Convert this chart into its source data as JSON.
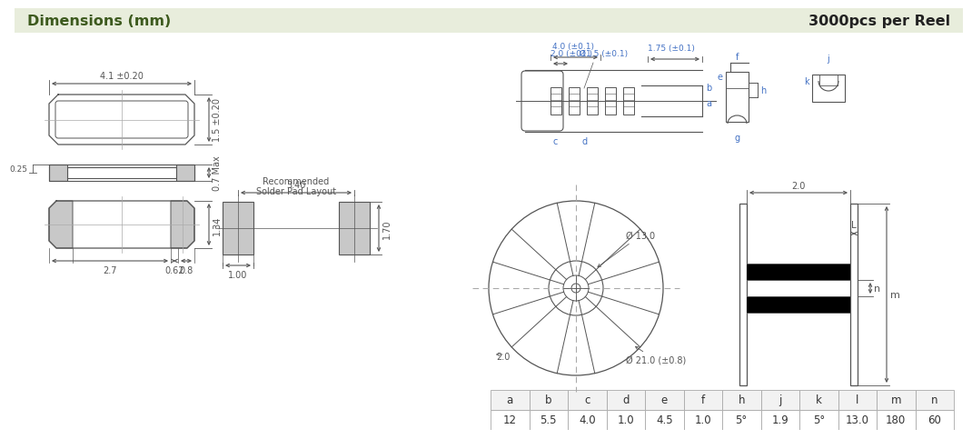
{
  "title_left": "Dimensions (mm)",
  "title_right": "3000pcs per Reel",
  "header_bg": "#e8eddc",
  "header_text_color_left": "#3d5a1e",
  "header_text_color_right": "#222222",
  "table_headers": [
    "a",
    "b",
    "c",
    "d",
    "e",
    "f",
    "h",
    "j",
    "k",
    "l",
    "m",
    "n"
  ],
  "table_values": [
    "12",
    "5.5",
    "4.0",
    "1.0",
    "4.5",
    "1.0",
    "5°",
    "1.9",
    "5°",
    "13.0",
    "180",
    "60"
  ],
  "dim_41": "4.1 ±0.20",
  "dim_15": "1.5 ±0.20",
  "dim_025": "0.25",
  "dim_07": "0.7 Max",
  "dim_134": "1.34",
  "dim_27": "2.7",
  "dim_062": "0.62",
  "dim_08": "0.8",
  "solder_label1": "Recommended",
  "solder_label2": "Solder Pad Layout",
  "dim_340": "3.40",
  "dim_170": "1.70",
  "dim_100": "1.00",
  "tape_label_40": "4.0 (±0.1)",
  "tape_label_20": "2.0 (±01.)",
  "tape_label_d15": "Ø1.5 (±0.1)",
  "tape_label_175": "1.75 (±0.1)",
  "reel_d130": "Ø 13.0",
  "reel_d210": "Ø 21.0 (±0.8)",
  "reel_dim_L": "L",
  "reel_dim_n": "n",
  "reel_dim_m": "m",
  "reel_dim_2top": "2.0",
  "reel_dim_20left": "2.0",
  "line_color": "#555555",
  "dim_color": "#555555",
  "blue_color": "#4472c4",
  "gray_pad": "#c8c8c8"
}
